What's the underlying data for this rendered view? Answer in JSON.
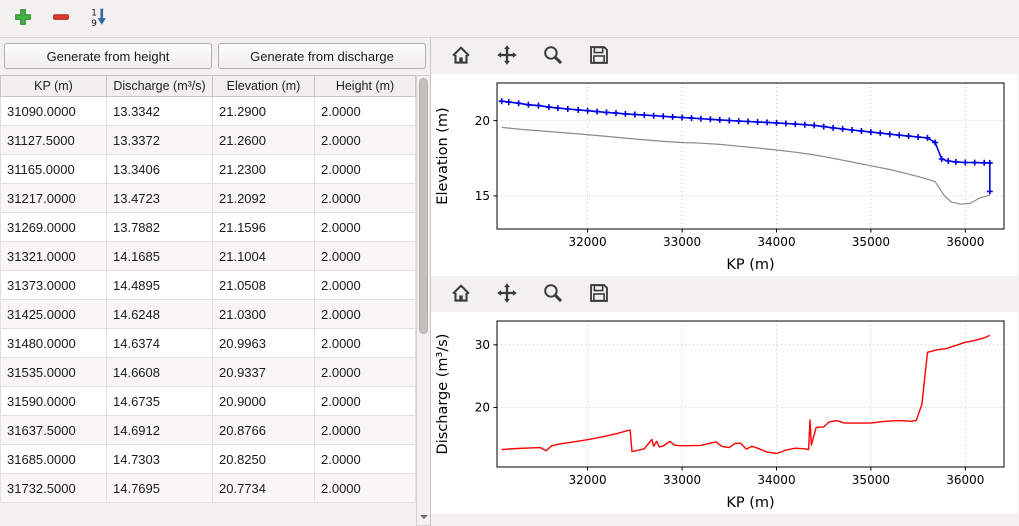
{
  "window": {
    "background": "#f2f1ef"
  },
  "main_toolbar": {
    "buttons": [
      {
        "name": "add-row",
        "icon": "green-plus"
      },
      {
        "name": "remove-row",
        "icon": "red-minus"
      },
      {
        "name": "sort-ascending",
        "icon": "blue-arrow-down-1-9"
      }
    ]
  },
  "left_panel": {
    "generate_from_height_label": "Generate from height",
    "generate_from_discharge_label": "Generate from discharge",
    "table": {
      "columns": [
        "KP (m)",
        "Discharge (m³/s)",
        "Elevation (m)",
        "Height (m)"
      ],
      "rows": [
        [
          "31090.0000",
          "13.3342",
          "21.2900",
          "2.0000"
        ],
        [
          "31127.5000",
          "13.3372",
          "21.2600",
          "2.0000"
        ],
        [
          "31165.0000",
          "13.3406",
          "21.2300",
          "2.0000"
        ],
        [
          "31217.0000",
          "13.4723",
          "21.2092",
          "2.0000"
        ],
        [
          "31269.0000",
          "13.7882",
          "21.1596",
          "2.0000"
        ],
        [
          "31321.0000",
          "14.1685",
          "21.1004",
          "2.0000"
        ],
        [
          "31373.0000",
          "14.4895",
          "21.0508",
          "2.0000"
        ],
        [
          "31425.0000",
          "14.6248",
          "21.0300",
          "2.0000"
        ],
        [
          "31480.0000",
          "14.6374",
          "20.9963",
          "2.0000"
        ],
        [
          "31535.0000",
          "14.6608",
          "20.9337",
          "2.0000"
        ],
        [
          "31590.0000",
          "14.6735",
          "20.9000",
          "2.0000"
        ],
        [
          "31637.5000",
          "14.6912",
          "20.8766",
          "2.0000"
        ],
        [
          "31685.0000",
          "14.7303",
          "20.8250",
          "2.0000"
        ],
        [
          "31732.5000",
          "14.7695",
          "20.7734",
          "2.0000"
        ]
      ]
    }
  },
  "plot_toolbars": {
    "icons": [
      "home",
      "pan",
      "zoom",
      "save"
    ]
  },
  "chart_data": [
    {
      "type": "line",
      "title": "",
      "xlabel": "KP (m)",
      "ylabel": "Elevation (m)",
      "xlim": [
        31040,
        36410
      ],
      "ylim": [
        12.8,
        22.5
      ],
      "xticks": [
        32000,
        33000,
        34000,
        35000,
        36000
      ],
      "yticks": [
        15,
        20
      ],
      "grid": true,
      "legend": false,
      "series": [
        {
          "name": "crest-elevation",
          "color": "#0000e0",
          "width": 1.6,
          "marker": "plus",
          "x": [
            31090,
            31165,
            31269,
            31373,
            31480,
            31590,
            31685,
            31790,
            31900,
            32000,
            32100,
            32200,
            32300,
            32400,
            32500,
            32600,
            32700,
            32800,
            32900,
            33000,
            33100,
            33200,
            33300,
            33400,
            33500,
            33600,
            33700,
            33800,
            33900,
            34000,
            34100,
            34200,
            34300,
            34400,
            34500,
            34600,
            34700,
            34800,
            34900,
            35000,
            35100,
            35200,
            35300,
            35400,
            35500,
            35600,
            35680,
            35750,
            35820,
            35900,
            36000,
            36100,
            36200,
            36260,
            36260
          ],
          "y": [
            21.29,
            21.23,
            21.16,
            21.05,
            21.0,
            20.9,
            20.83,
            20.77,
            20.71,
            20.66,
            20.6,
            20.55,
            20.5,
            20.45,
            20.41,
            20.37,
            20.33,
            20.29,
            20.25,
            20.21,
            20.17,
            20.13,
            20.09,
            20.05,
            20.01,
            19.97,
            19.94,
            19.91,
            19.88,
            19.85,
            19.81,
            19.77,
            19.73,
            19.68,
            19.6,
            19.52,
            19.45,
            19.38,
            19.31,
            19.24,
            19.17,
            19.1,
            19.03,
            18.97,
            18.91,
            18.85,
            18.55,
            17.45,
            17.32,
            17.26,
            17.22,
            17.21,
            17.2,
            17.19,
            15.3
          ]
        },
        {
          "name": "bed-elevation",
          "color": "#8a8a8a",
          "width": 1.2,
          "marker": null,
          "x": [
            31090,
            31300,
            31600,
            31900,
            32200,
            32500,
            32800,
            33000,
            33200,
            33400,
            33600,
            33800,
            34000,
            34200,
            34400,
            34600,
            34800,
            35000,
            35200,
            35400,
            35550,
            35680,
            35780,
            35850,
            35950,
            36050,
            36150,
            36260
          ],
          "y": [
            19.55,
            19.42,
            19.27,
            19.12,
            18.95,
            18.78,
            18.62,
            18.55,
            18.5,
            18.42,
            18.3,
            18.18,
            18.05,
            17.9,
            17.72,
            17.5,
            17.25,
            17.0,
            16.75,
            16.45,
            16.2,
            15.95,
            15.0,
            14.6,
            14.45,
            14.5,
            14.85,
            15.05
          ]
        }
      ]
    },
    {
      "type": "line",
      "title": "",
      "xlabel": "KP (m)",
      "ylabel": "Discharge (m³/s)",
      "xlim": [
        31040,
        36410
      ],
      "ylim": [
        10.5,
        33.8
      ],
      "xticks": [
        32000,
        33000,
        34000,
        35000,
        36000
      ],
      "yticks": [
        20,
        30
      ],
      "grid": true,
      "legend": false,
      "series": [
        {
          "name": "discharge",
          "color": "#ff0000",
          "width": 1.4,
          "marker": null,
          "x": [
            31090,
            31250,
            31400,
            31500,
            31560,
            31620,
            31700,
            31850,
            32000,
            32150,
            32300,
            32420,
            32450,
            32470,
            32600,
            32680,
            32700,
            32730,
            32760,
            32800,
            32870,
            32920,
            32970,
            33050,
            33200,
            33300,
            33360,
            33420,
            33500,
            33560,
            33620,
            33680,
            33740,
            33800,
            33900,
            34000,
            34100,
            34200,
            34300,
            34340,
            34355,
            34370,
            34420,
            34500,
            34560,
            34640,
            34720,
            34850,
            35000,
            35150,
            35300,
            35420,
            35480,
            35540,
            35600,
            35700,
            35800,
            35900,
            36000,
            36100,
            36200,
            36260
          ],
          "y": [
            13.3,
            13.45,
            13.55,
            13.6,
            13.1,
            13.9,
            14.15,
            14.5,
            14.85,
            15.3,
            15.8,
            16.3,
            16.4,
            12.95,
            13.4,
            14.9,
            13.8,
            14.6,
            13.7,
            13.85,
            14.6,
            14.0,
            13.9,
            13.9,
            13.95,
            14.3,
            14.5,
            13.8,
            13.6,
            14.25,
            14.3,
            13.35,
            13.8,
            13.5,
            12.9,
            12.65,
            13.2,
            13.5,
            13.4,
            13.3,
            18.0,
            14.0,
            16.8,
            16.9,
            17.7,
            17.9,
            17.5,
            17.5,
            17.5,
            17.8,
            17.9,
            17.8,
            17.9,
            20.5,
            28.8,
            29.2,
            29.4,
            29.9,
            30.4,
            30.7,
            31.1,
            31.5
          ]
        }
      ]
    }
  ]
}
